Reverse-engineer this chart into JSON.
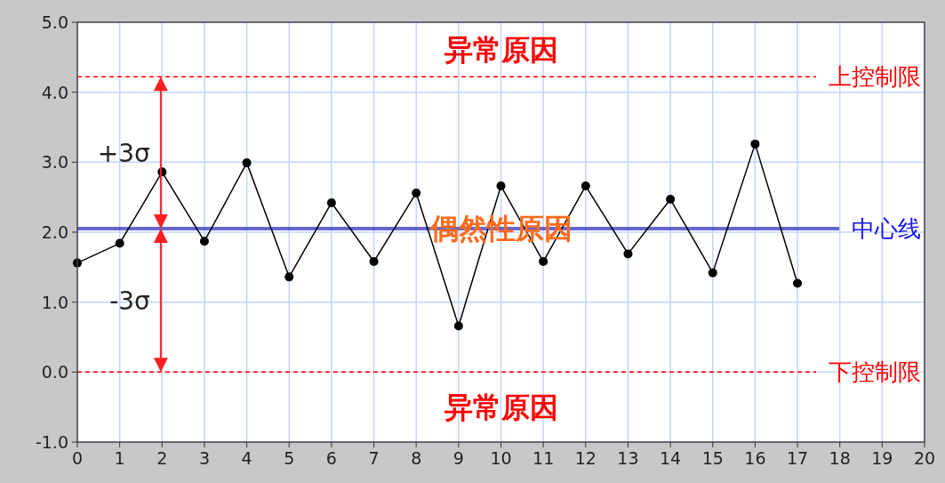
{
  "chart_data": {
    "type": "line",
    "x": [
      0,
      1,
      2,
      3,
      4,
      5,
      6,
      7,
      8,
      9,
      10,
      11,
      12,
      13,
      14,
      15,
      16,
      17
    ],
    "series": [
      {
        "color": "#000000",
        "values": [
          1.56,
          1.84,
          2.86,
          1.87,
          2.99,
          1.36,
          2.42,
          1.58,
          2.56,
          0.66,
          2.66,
          1.58,
          2.66,
          1.69,
          2.47,
          1.42,
          3.26,
          1.27
        ]
      }
    ],
    "xlim": [
      0,
      20
    ],
    "xticks": [
      0,
      1,
      2,
      3,
      4,
      5,
      6,
      7,
      8,
      9,
      10,
      11,
      12,
      13,
      14,
      15,
      16,
      17,
      18,
      19,
      20
    ],
    "ylim": [
      -1,
      5
    ],
    "yticks": [
      {
        "value": -1,
        "label": "-1.0"
      },
      {
        "value": 0,
        "label": "0.0"
      },
      {
        "value": 1,
        "label": "1.0"
      },
      {
        "value": 2,
        "label": "2.0"
      },
      {
        "value": 3,
        "label": "3.0"
      },
      {
        "value": 4,
        "label": "4.0"
      },
      {
        "value": 5,
        "label": "5.0"
      }
    ],
    "grid": true,
    "marker": "circle",
    "line_style": "solid",
    "ref_lines": [
      {
        "axis": "y",
        "value": 4.22,
        "label": "上控制限",
        "color": "#ff0000",
        "line_style": "dashed"
      },
      {
        "axis": "y",
        "value": 2.05,
        "label": "中心线",
        "color": "#4040c0",
        "line_style": "solid"
      },
      {
        "axis": "y",
        "value": 0,
        "label": "下控制限",
        "color": "#ff0000",
        "line_style": "dashed"
      }
    ],
    "annotations": [
      "异常原因",
      "+3σ",
      "偶然性原因",
      "-3σ",
      "异常原因"
    ]
  }
}
